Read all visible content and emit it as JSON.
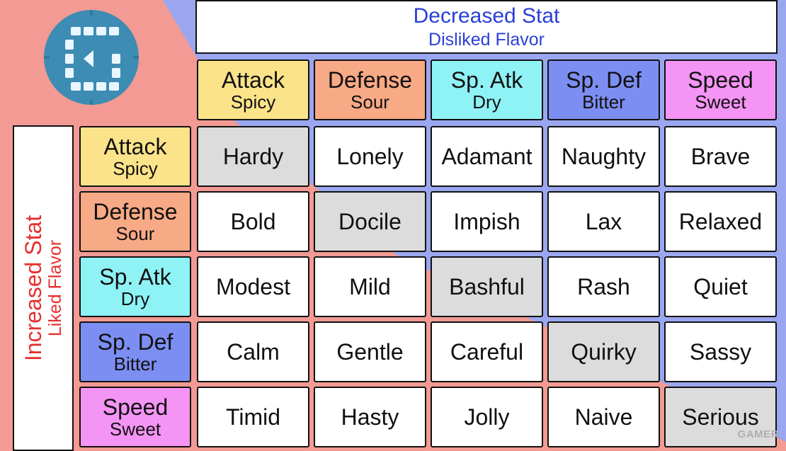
{
  "decreased": {
    "title": "Decreased Stat",
    "subtitle": "Disliked Flavor"
  },
  "increased": {
    "title": "Increased Stat",
    "subtitle": "Liked Flavor"
  },
  "stats": [
    {
      "stat": "Attack",
      "flavor": "Spicy",
      "color": "#fbe38a"
    },
    {
      "stat": "Defense",
      "flavor": "Sour",
      "color": "#f8a985"
    },
    {
      "stat": "Sp. Atk",
      "flavor": "Dry",
      "color": "#8ff2f5"
    },
    {
      "stat": "Sp. Def",
      "flavor": "Bitter",
      "color": "#7d8ef2"
    },
    {
      "stat": "Speed",
      "flavor": "Sweet",
      "color": "#f494f4"
    }
  ],
  "natures": [
    [
      "Hardy",
      "Lonely",
      "Adamant",
      "Naughty",
      "Brave"
    ],
    [
      "Bold",
      "Docile",
      "Impish",
      "Lax",
      "Relaxed"
    ],
    [
      "Modest",
      "Mild",
      "Bashful",
      "Rash",
      "Quiet"
    ],
    [
      "Calm",
      "Gentle",
      "Careful",
      "Quirky",
      "Sassy"
    ],
    [
      "Timid",
      "Hasty",
      "Jolly",
      "Naive",
      "Serious"
    ]
  ],
  "logo_icon": "gamer-guides-logo-icon",
  "watermark": "GAMER"
}
